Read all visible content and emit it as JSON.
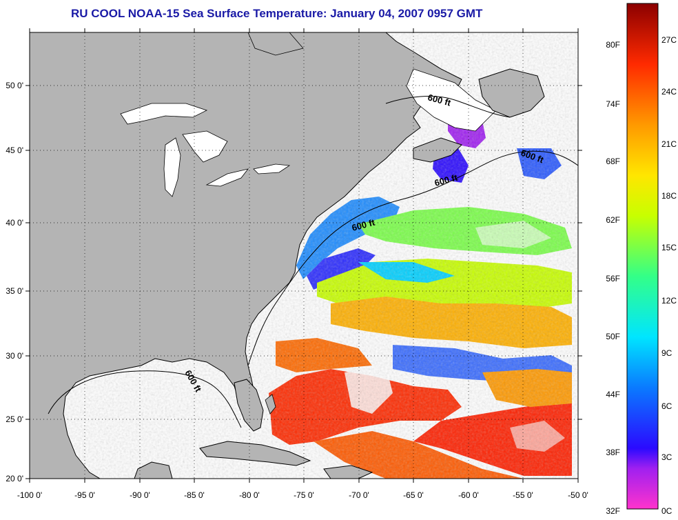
{
  "title": "RU COOL  NOAA-15  Sea Surface Temperature:  January 04, 2007 0957 GMT",
  "map": {
    "lon_labels": [
      "-100 0'",
      "-95 0'",
      "-90 0'",
      "-85 0'",
      "-80 0'",
      "-75 0'",
      "-70 0'",
      "-65 0'",
      "-60 0'",
      "-55 0'",
      "-50 0'"
    ],
    "lat_labels": [
      "50 0'",
      "45 0'",
      "40 0'",
      "35 0'",
      "30 0'",
      "25 0'",
      "20 0'"
    ],
    "contour_label": "600 ft",
    "land_color": "#b4b4b4",
    "no_data_color": "#ffffff"
  },
  "colorbar": {
    "fahrenheit_labels": [
      "80F",
      "74F",
      "68F",
      "62F",
      "56F",
      "50F",
      "44F",
      "38F",
      "32F"
    ],
    "celsius_labels": [
      "27C",
      "24C",
      "21C",
      "18C",
      "15C",
      "12C",
      "9C",
      "6C",
      "3C",
      "0C"
    ]
  }
}
